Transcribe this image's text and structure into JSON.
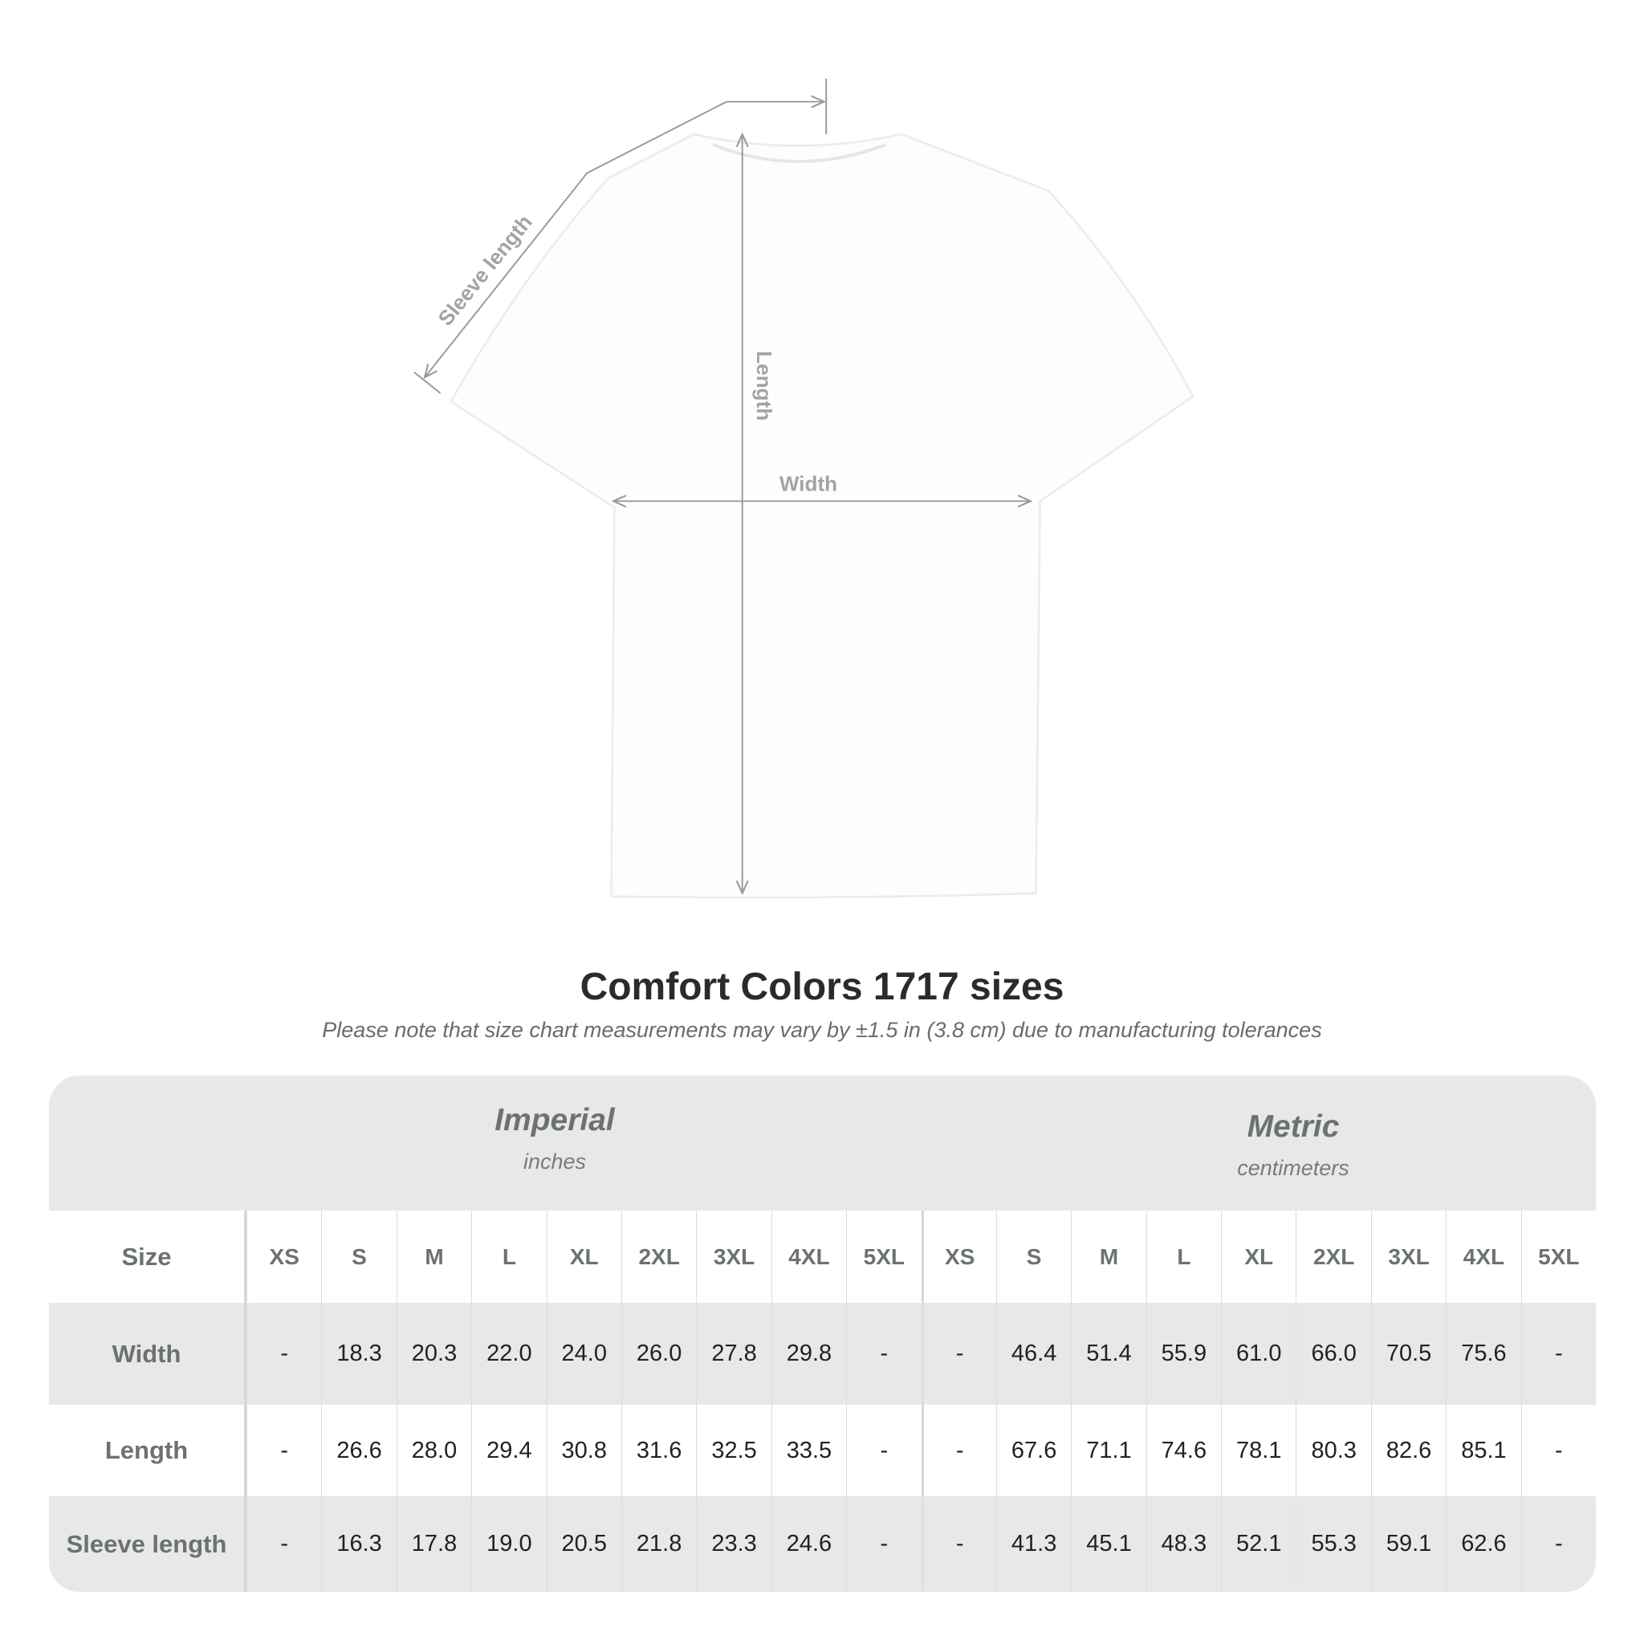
{
  "diagram": {
    "labels": {
      "sleeve": "Sleeve length",
      "length": "Length",
      "width": "Width"
    },
    "colors": {
      "shirt": "#ffffff",
      "measure_line": "#9a9a9a"
    }
  },
  "title": "Comfort Colors 1717 sizes",
  "note": "Please note that size chart measurements may vary by ±1.5 in (3.8 cm) due to manufacturing tolerances",
  "table": {
    "imperial": {
      "name": "Imperial",
      "unit": "inches"
    },
    "metric": {
      "name": "Metric",
      "unit": "centimeters"
    },
    "size_label": "Size",
    "sizes": [
      "XS",
      "S",
      "M",
      "L",
      "XL",
      "2XL",
      "3XL",
      "4XL",
      "5XL"
    ],
    "rows": [
      {
        "label": "Width",
        "imperial": [
          "-",
          "18.3",
          "20.3",
          "22.0",
          "24.0",
          "26.0",
          "27.8",
          "29.8",
          "-"
        ],
        "metric": [
          "-",
          "46.4",
          "51.4",
          "55.9",
          "61.0",
          "66.0",
          "70.5",
          "75.6",
          "-"
        ]
      },
      {
        "label": "Length",
        "imperial": [
          "-",
          "26.6",
          "28.0",
          "29.4",
          "30.8",
          "31.6",
          "32.5",
          "33.5",
          "-"
        ],
        "metric": [
          "-",
          "67.6",
          "71.1",
          "74.6",
          "78.1",
          "80.3",
          "82.6",
          "85.1",
          "-"
        ]
      },
      {
        "label": "Sleeve length",
        "imperial": [
          "-",
          "16.3",
          "17.8",
          "19.0",
          "20.5",
          "21.8",
          "23.3",
          "24.6",
          "-"
        ],
        "metric": [
          "-",
          "41.3",
          "45.1",
          "48.3",
          "52.1",
          "55.3",
          "59.1",
          "62.6",
          "-"
        ]
      }
    ]
  }
}
